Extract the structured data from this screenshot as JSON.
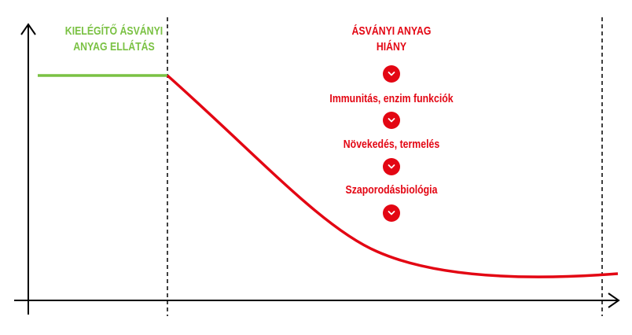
{
  "left_zone": {
    "title_line1": "KIELÉGÍTŐ ÁSVÁNYI",
    "title_line2": "ANYAG ELLÁTÁS"
  },
  "right_zone": {
    "title_line1": "ÁSVÁNYI ANYAG",
    "title_line2": "HIÁNY",
    "steps": [
      "Immunitás, enzim funkciók",
      "Növekedés, termelés",
      "Szaporodásbiológia"
    ]
  },
  "colors": {
    "supply": "#7ac143",
    "deficiency": "#e30613",
    "axis": "#000000"
  },
  "icons": {
    "step_marker": "chevron-down-icon",
    "axis_arrow": "arrow-icon"
  }
}
